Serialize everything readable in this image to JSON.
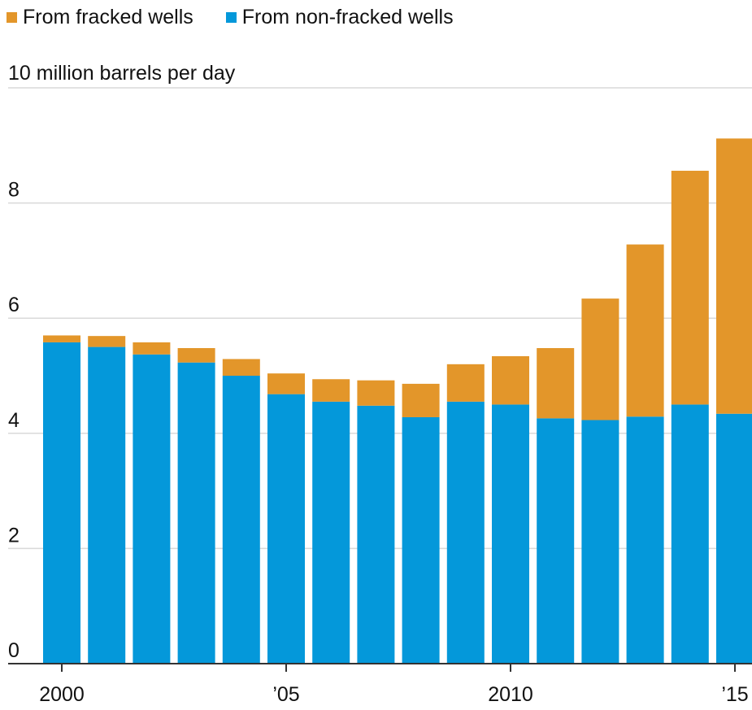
{
  "legend": {
    "fracked_label": "From fracked wells",
    "nonfracked_label": "From non-fracked wells"
  },
  "colors": {
    "fracked": "#E3962A",
    "nonfracked": "#0498DA",
    "grid": "#d9d9d9",
    "axis": "#333333"
  },
  "chart_data": {
    "type": "bar",
    "stacked": true,
    "unit_label": "10 million barrels per day",
    "categories": [
      "2000",
      "2001",
      "2002",
      "2003",
      "2004",
      "2005",
      "2006",
      "2007",
      "2008",
      "2009",
      "2010",
      "2011",
      "2012",
      "2013",
      "2014",
      "2015"
    ],
    "x_tick_labels": [
      {
        "category": "2000",
        "label": "2000"
      },
      {
        "category": "2005",
        "label": "’05"
      },
      {
        "category": "2010",
        "label": "2010"
      },
      {
        "category": "2015",
        "label": "’15"
      }
    ],
    "y_ticks": [
      0,
      2,
      4,
      6,
      8
    ],
    "y_tick_labels": [
      "0",
      "2",
      "4",
      "6",
      "8"
    ],
    "ylim": [
      0,
      10
    ],
    "grid": true,
    "legend_position": "top-left",
    "series": [
      {
        "name": "From non-fracked wells",
        "values": [
          5.58,
          5.5,
          5.37,
          5.23,
          5.0,
          4.68,
          4.55,
          4.48,
          4.28,
          4.55,
          4.5,
          4.26,
          4.23,
          4.29,
          4.5,
          4.34
        ]
      },
      {
        "name": "From fracked wells",
        "values": [
          0.12,
          0.19,
          0.21,
          0.25,
          0.29,
          0.36,
          0.39,
          0.44,
          0.58,
          0.65,
          0.84,
          1.22,
          2.11,
          2.99,
          4.06,
          4.78
        ]
      }
    ]
  }
}
